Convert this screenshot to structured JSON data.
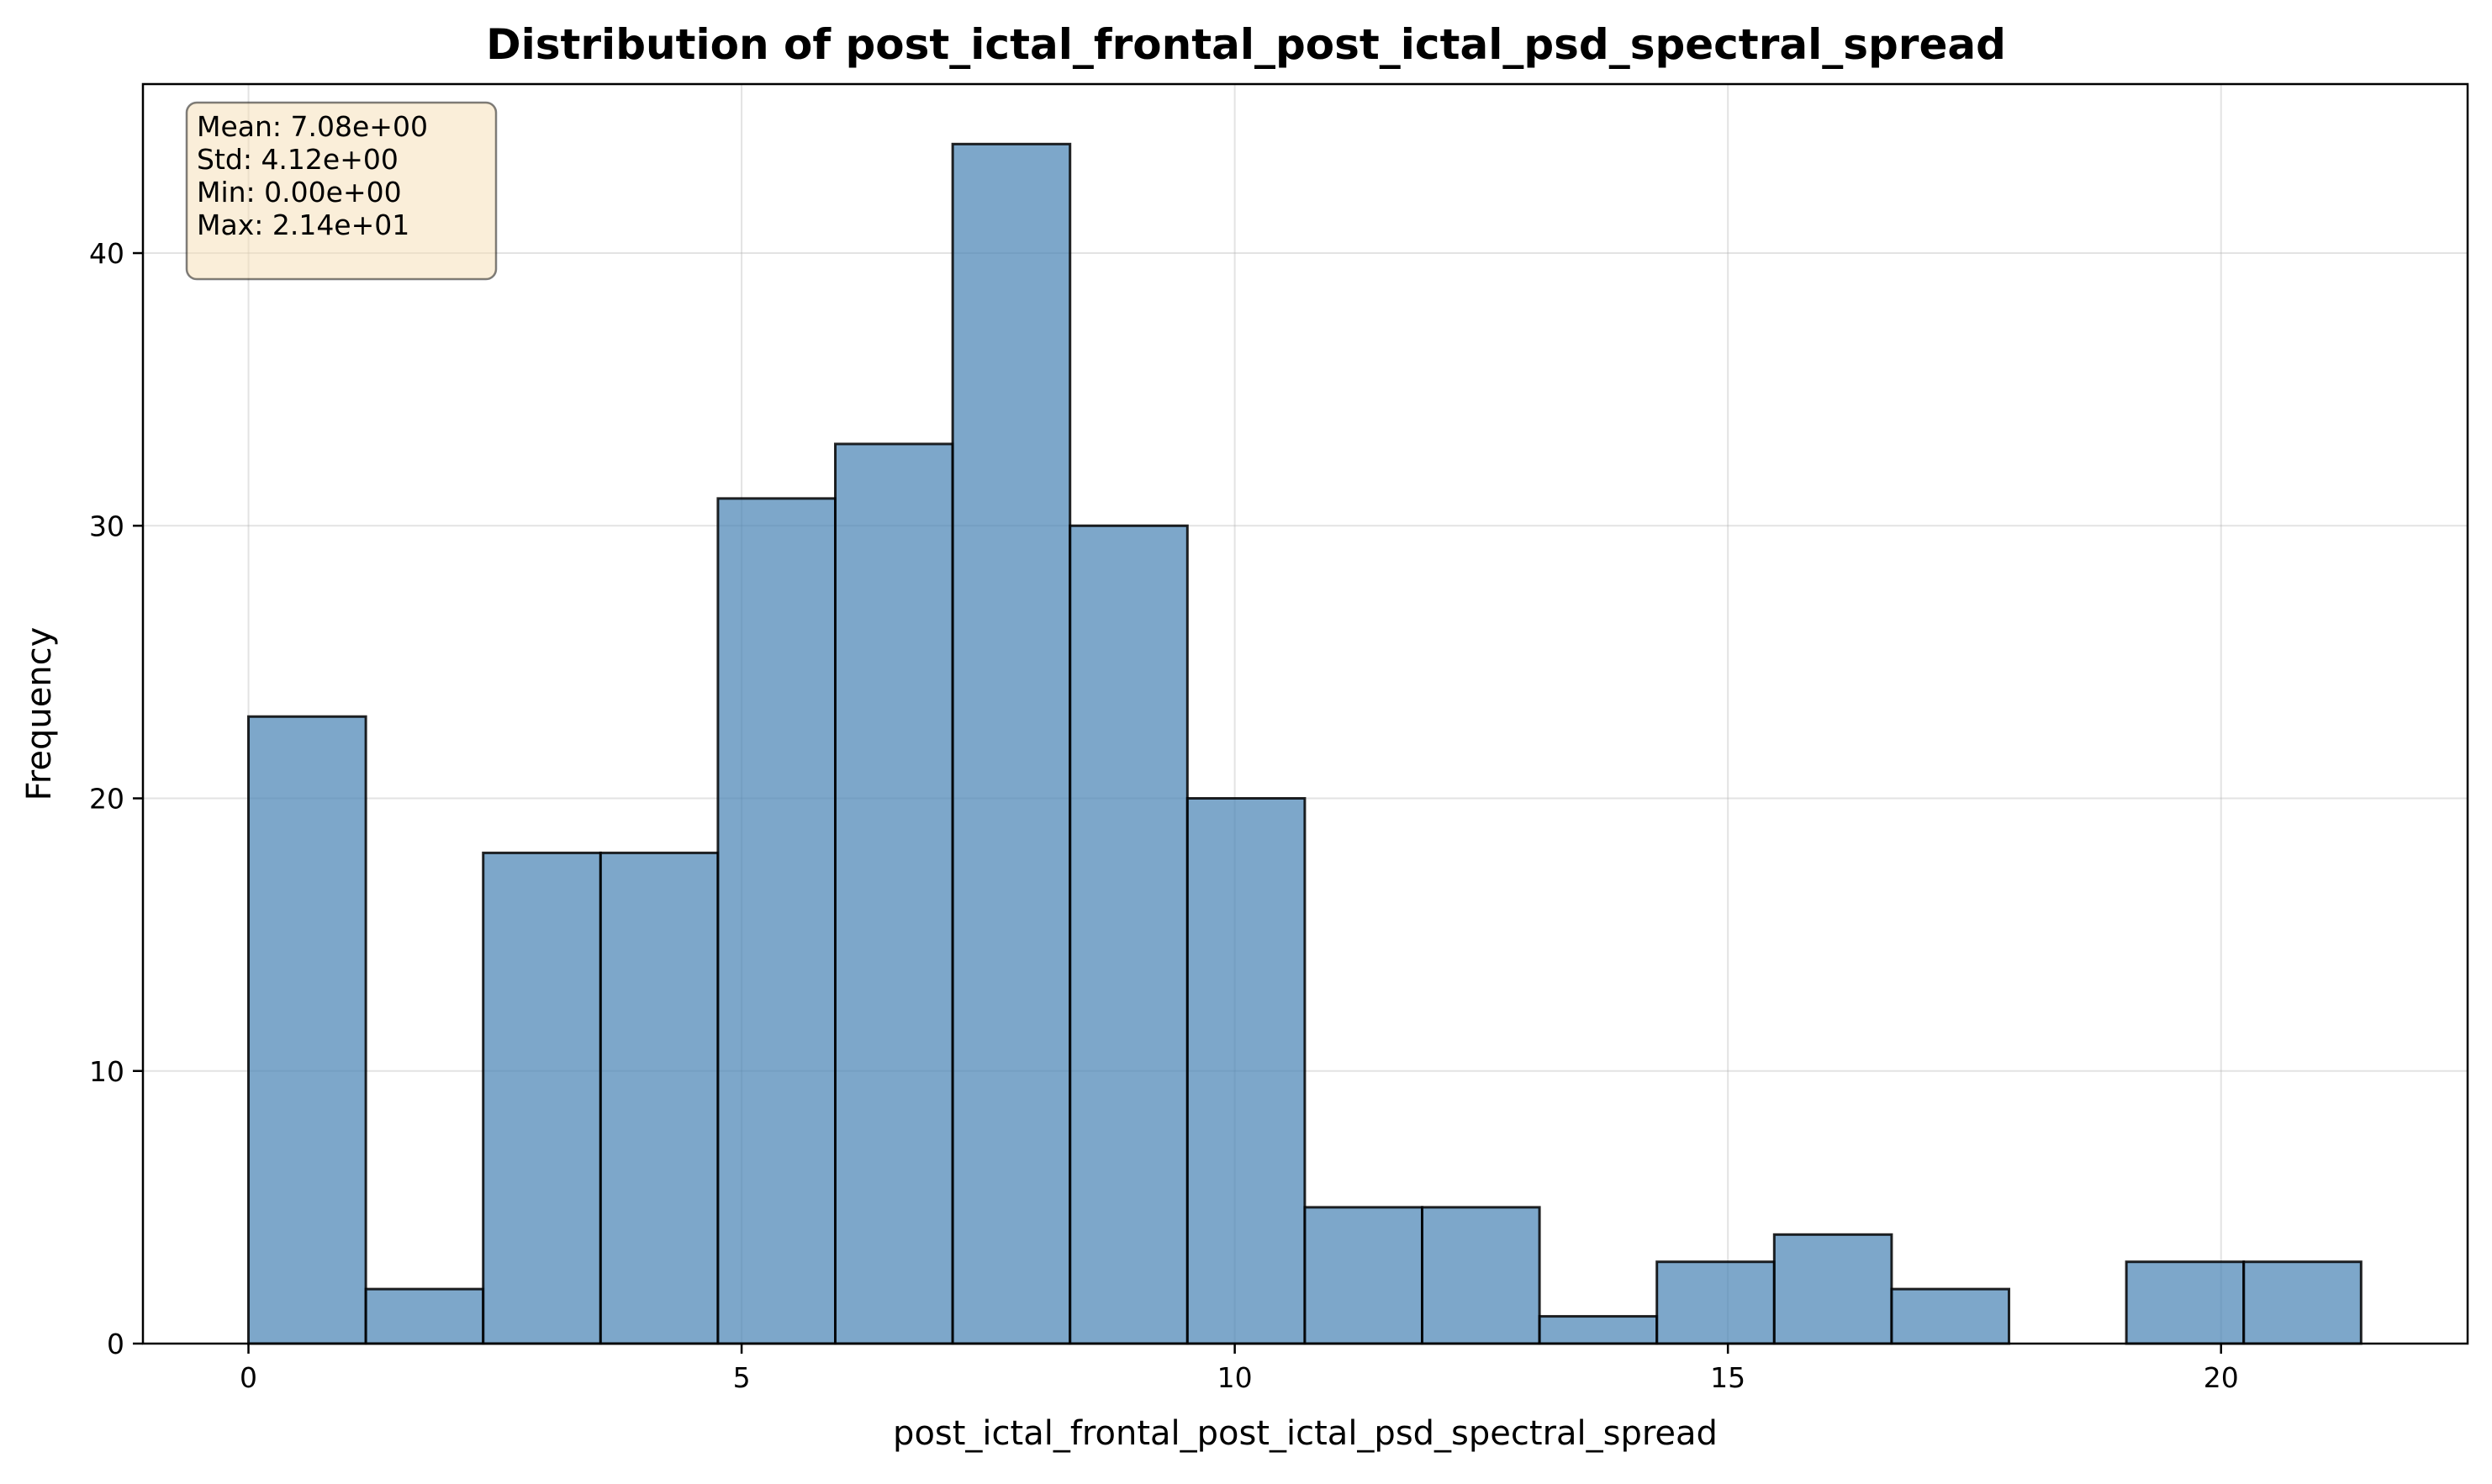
{
  "chart_data": {
    "type": "bar",
    "title": "Distribution of post_ictal_frontal_post_ictal_psd_spectral_spread",
    "xlabel": "post_ictal_frontal_post_ictal_psd_spectral_spread",
    "ylabel": "Frequency",
    "xlim": [
      -1.07,
      22.5
    ],
    "ylim": [
      0,
      46.2
    ],
    "x_ticks": [
      0,
      5,
      10,
      15,
      20
    ],
    "y_ticks": [
      0,
      10,
      20,
      30,
      40
    ],
    "grid": true,
    "bar_color": "#4682b4",
    "bin_edges": [
      0,
      1.19,
      2.38,
      3.57,
      4.76,
      5.95,
      7.14,
      8.33,
      9.52,
      10.71,
      11.9,
      13.09,
      14.28,
      15.47,
      16.66,
      17.85,
      19.04,
      20.23,
      21.42
    ],
    "values": [
      23,
      2,
      18,
      18,
      31,
      33,
      44,
      30,
      20,
      5,
      5,
      1,
      3,
      4,
      2,
      0,
      3,
      3
    ],
    "stats_box": {
      "placement": "top-left",
      "lines": [
        "Mean: 7.08e+00",
        "Std: 4.12e+00",
        "Min: 0.00e+00",
        "Max: 2.14e+01"
      ]
    }
  }
}
